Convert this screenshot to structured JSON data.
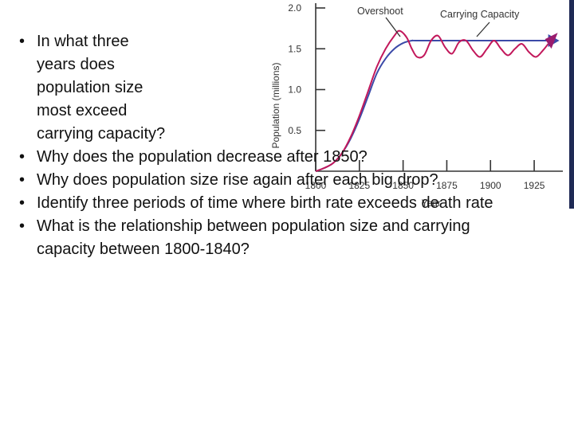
{
  "questions": [
    "In what three years does population size most exceed carrying capacity?",
    "Why does the population decrease after 1850?",
    "Why does population size rise again after each big drop?",
    "Identify three periods of time where birth rate exceeds death rate",
    "What is the relationship between population size and carrying capacity between 1800-1840?"
  ],
  "colors": {
    "population_line": "#c2185b",
    "capacity_line": "#3b4aa8",
    "arrow": "#9a1c6e",
    "axis": "#333333",
    "frame": "#1f2a55"
  },
  "chart_data": {
    "type": "line",
    "xlabel": "Year",
    "ylabel": "Population (millions)",
    "xlim": [
      1800,
      1935
    ],
    "ylim": [
      0,
      2.0
    ],
    "x_ticks": [
      "1800",
      "1825",
      "1850",
      "1875",
      "1900",
      "1925"
    ],
    "y_ticks": [
      "0.5",
      "1.0",
      "1.5",
      "2.0"
    ],
    "annotations": [
      "Overshoot",
      "Carrying Capacity"
    ],
    "series": [
      {
        "role": "population",
        "x": [
          1800,
          1805,
          1810,
          1815,
          1820,
          1825,
          1830,
          1835,
          1840,
          1845,
          1848,
          1852,
          1855,
          1858,
          1862,
          1866,
          1870,
          1874,
          1878,
          1882,
          1886,
          1890,
          1894,
          1898,
          1902,
          1906,
          1910,
          1914,
          1918,
          1922,
          1926,
          1930,
          1933
        ],
        "y": [
          0.0,
          0.04,
          0.1,
          0.22,
          0.42,
          0.68,
          0.98,
          1.28,
          1.5,
          1.66,
          1.72,
          1.64,
          1.5,
          1.4,
          1.42,
          1.6,
          1.66,
          1.52,
          1.44,
          1.58,
          1.6,
          1.48,
          1.4,
          1.5,
          1.6,
          1.5,
          1.42,
          1.5,
          1.56,
          1.46,
          1.4,
          1.48,
          1.56
        ]
      },
      {
        "role": "carrying_capacity",
        "x": [
          1800,
          1805,
          1810,
          1815,
          1820,
          1825,
          1830,
          1835,
          1840,
          1845,
          1850,
          1855,
          1860,
          1900,
          1933
        ],
        "y": [
          0.0,
          0.04,
          0.1,
          0.22,
          0.4,
          0.64,
          0.92,
          1.2,
          1.38,
          1.5,
          1.57,
          1.6,
          1.6,
          1.6,
          1.6
        ]
      }
    ]
  }
}
